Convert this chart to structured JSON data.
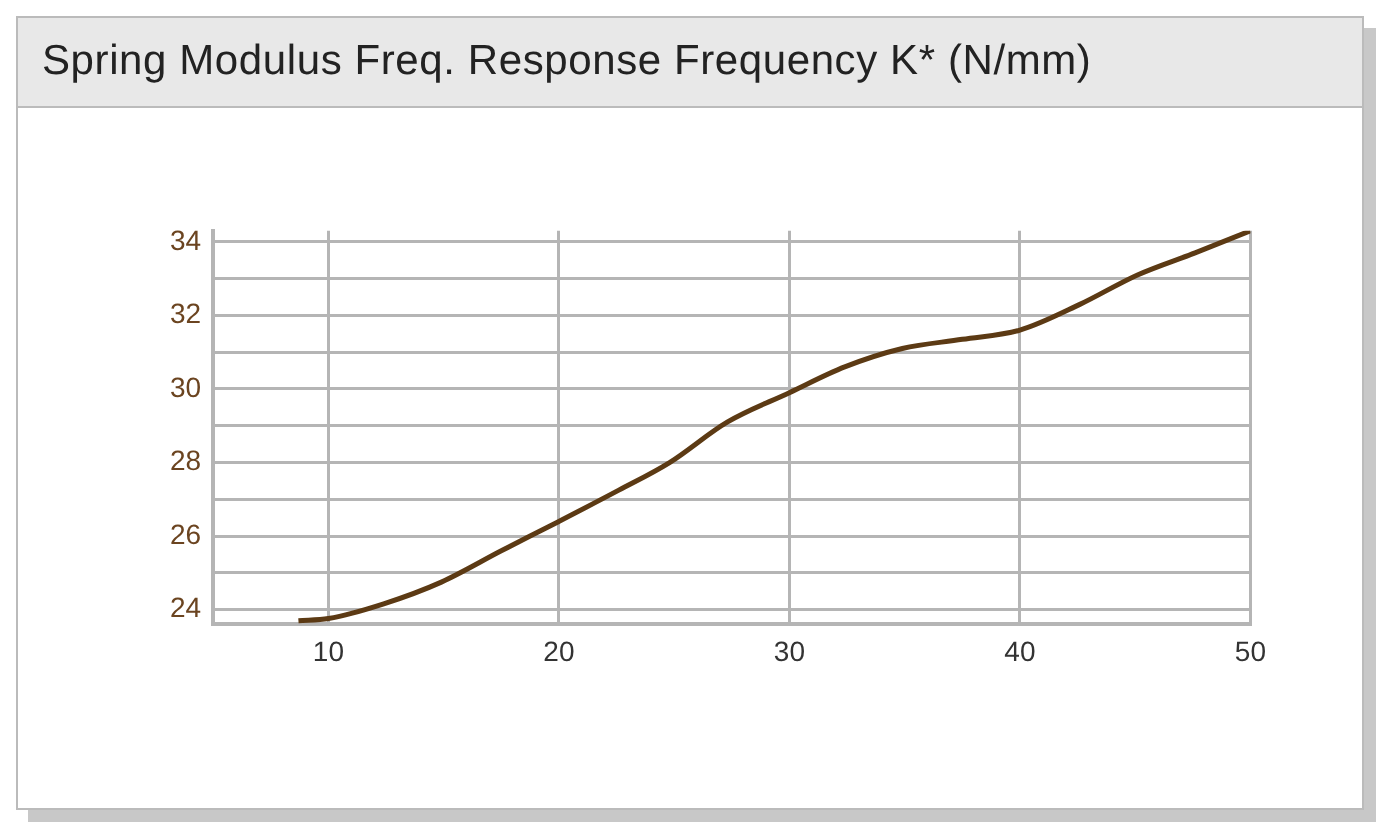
{
  "chart_data": {
    "type": "line",
    "title": "Spring Modulus Freq. Response Frequency K* (N/mm)",
    "x": [
      8.7,
      10,
      12.4,
      14.9,
      17.5,
      20,
      22.6,
      24.8,
      27.3,
      30,
      32.4,
      34.9,
      37.5,
      40,
      42.6,
      45.1,
      47.6,
      50
    ],
    "series": [
      {
        "color": "#5c3a14",
        "values": [
          23.7,
          23.76,
          24.16,
          24.75,
          25.6,
          26.4,
          27.25,
          28.0,
          29.1,
          29.9,
          30.6,
          31.1,
          31.35,
          31.6,
          32.3,
          33.1,
          33.7,
          34.3
        ]
      }
    ],
    "xlim": [
      5,
      50
    ],
    "xticks": [
      10,
      20,
      30,
      40,
      50
    ],
    "ylim": [
      23.6,
      34.3
    ],
    "yticks": [
      24,
      {
        "value": 25,
        "label": null
      },
      26,
      {
        "value": 27,
        "label": null
      },
      28,
      {
        "value": 29,
        "label": null
      },
      30,
      {
        "value": 31,
        "label": null
      },
      32,
      {
        "value": 33,
        "label": null
      },
      34
    ],
    "grid": true,
    "legend": false,
    "marker": "none",
    "line_style": "solid"
  }
}
